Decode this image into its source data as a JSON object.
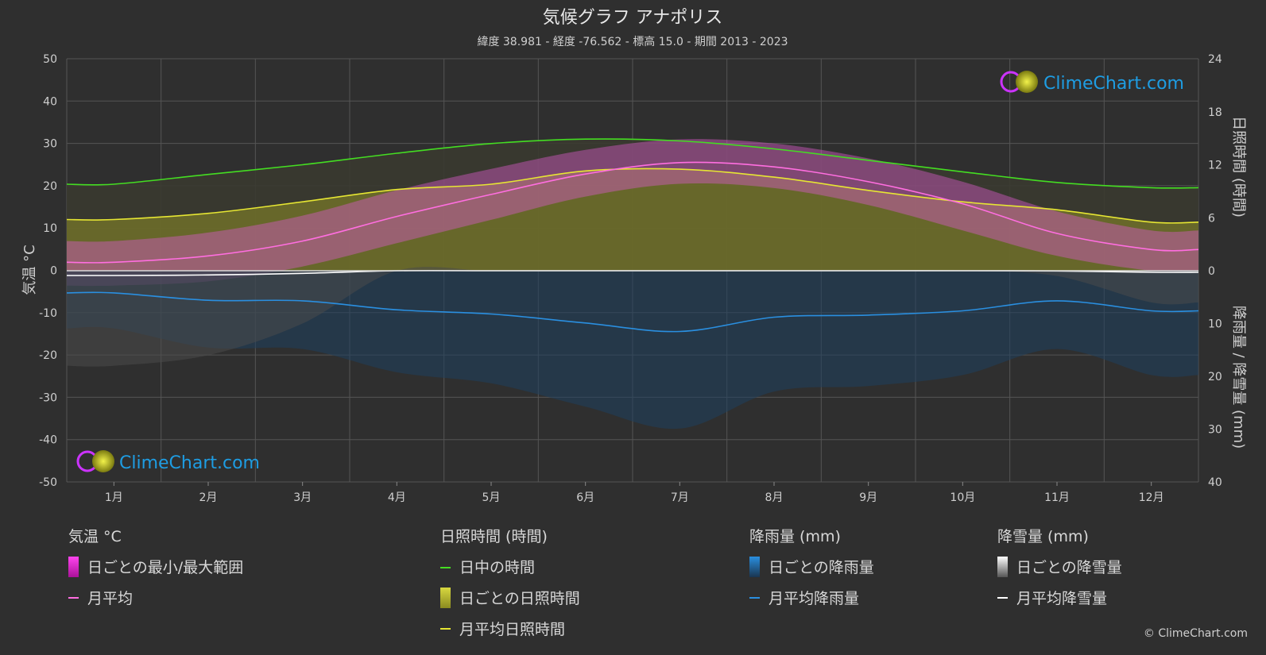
{
  "chart_data": {
    "type": "area",
    "title": "気候グラフ アナポリス",
    "subtitle": "緯度 38.981 - 経度 -76.562 - 標高 15.0 - 期間 2013 - 2023",
    "categories": [
      "1月",
      "2月",
      "3月",
      "4月",
      "5月",
      "6月",
      "7月",
      "8月",
      "9月",
      "10月",
      "11月",
      "12月"
    ],
    "ylabel_left": "気温 °C",
    "ylabel_right_top": "日照時間 (時間)",
    "ylabel_right_bottom": "降雨量 / 降雪量 (mm)",
    "ylim_left": [
      -50,
      50
    ],
    "left_ticks": [
      "50",
      "40",
      "30",
      "20",
      "10",
      "0",
      "-10",
      "-20",
      "-30",
      "-40",
      "-50"
    ],
    "sun_ticks": [
      "24",
      "18",
      "12",
      "6",
      "0"
    ],
    "precip_ticks": [
      "0",
      "10",
      "20",
      "30",
      "40"
    ],
    "ylim_sun": [
      0,
      24
    ],
    "ylim_precip": [
      0,
      40
    ],
    "grid": true,
    "series": [
      {
        "name": "日中の時間",
        "unit": "hours",
        "color": "#44dd22",
        "values": [
          9.8,
          10.9,
          12.0,
          13.3,
          14.4,
          14.9,
          14.7,
          13.8,
          12.5,
          11.2,
          10.0,
          9.4
        ]
      },
      {
        "name": "月平均日照時間",
        "unit": "hours",
        "color": "#e6e633",
        "values": [
          5.8,
          6.5,
          7.8,
          9.2,
          9.8,
          11.3,
          11.5,
          10.6,
          9.1,
          7.8,
          6.9,
          5.5
        ]
      },
      {
        "name": "月平均",
        "unit": "°C",
        "color": "#ff6ee0",
        "values": [
          2.0,
          3.5,
          7.0,
          12.8,
          18.0,
          22.8,
          25.5,
          24.5,
          21.0,
          15.8,
          8.8,
          5.0
        ]
      },
      {
        "name": "日ごとの最小/最大範囲",
        "unit": "°C",
        "color": "#ee22cc",
        "min": [
          -3.5,
          -2.5,
          1.0,
          6.5,
          12.0,
          17.5,
          20.5,
          19.5,
          15.5,
          9.5,
          3.5,
          0.0
        ],
        "max": [
          7.0,
          9.0,
          13.0,
          19.0,
          24.0,
          28.5,
          31.0,
          30.0,
          26.5,
          21.0,
          14.0,
          9.5
        ]
      },
      {
        "name": "月平均降雨量",
        "unit": "mm",
        "color": "#2a8fe0",
        "values": [
          4.2,
          5.6,
          5.7,
          7.4,
          8.2,
          9.9,
          11.5,
          8.8,
          8.4,
          7.6,
          5.7,
          7.6
        ]
      },
      {
        "name": "月平均降雪量",
        "unit": "mm",
        "color": "#ffffff",
        "values": [
          0.9,
          0.8,
          0.5,
          0.0,
          0.0,
          0.0,
          0.0,
          0.0,
          0.0,
          0.0,
          0.05,
          0.3
        ]
      }
    ]
  },
  "legend": {
    "groups": [
      {
        "title": "気温 °C",
        "items": [
          "日ごとの最小/最大範囲",
          "月平均"
        ]
      },
      {
        "title": "日照時間 (時間)",
        "items": [
          "日中の時間",
          "日ごとの日照時間",
          "月平均日照時間"
        ]
      },
      {
        "title": "降雨量 (mm)",
        "items": [
          "日ごとの降雨量",
          "月平均降雨量"
        ]
      },
      {
        "title": "降雪量 (mm)",
        "items": [
          "日ごとの降雪量",
          "月平均降雪量"
        ]
      }
    ]
  },
  "logo_text": "ClimeChart.com",
  "copyright": "© ClimeChart.com"
}
